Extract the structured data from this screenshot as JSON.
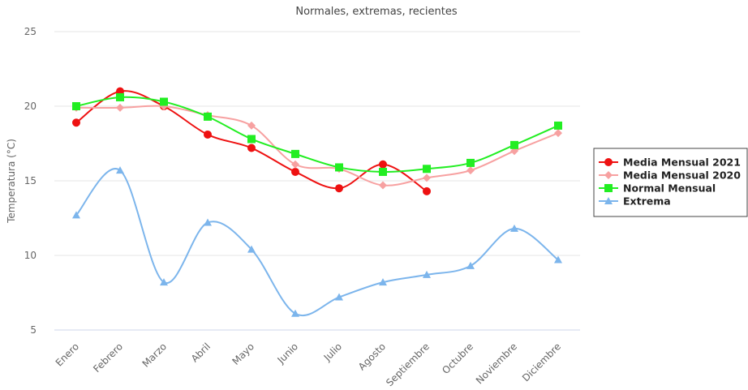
{
  "chart_data": {
    "type": "line",
    "title": "Normales, extremas, recientes",
    "y_label": "Temperatura (°C)",
    "categories": [
      "Enero",
      "Febrero",
      "Marzo",
      "Abril",
      "Mayo",
      "Junio",
      "Julio",
      "Agosto",
      "Septiembre",
      "Octubre",
      "Noviembre",
      "Diciembre"
    ],
    "series": [
      {
        "name": "Media Mensual 2021",
        "color": "#ee1111",
        "marker": "circle",
        "values": [
          18.9,
          21.0,
          20.0,
          18.1,
          17.2,
          15.6,
          14.5,
          16.1,
          14.3,
          null,
          null,
          null
        ]
      },
      {
        "name": "Media Mensual 2020",
        "color": "#f7a1a1",
        "marker": "diamond",
        "values": [
          19.9,
          19.9,
          20.0,
          19.4,
          18.7,
          16.1,
          15.8,
          14.7,
          15.2,
          15.7,
          17.0,
          18.2
        ]
      },
      {
        "name": "Normal Mensual",
        "color": "#22ee22",
        "marker": "square",
        "values": [
          20.0,
          20.6,
          20.3,
          19.3,
          17.8,
          16.8,
          15.9,
          15.6,
          15.8,
          16.2,
          17.4,
          18.7
        ]
      },
      {
        "name": "Extrema",
        "color": "#7cb5ec",
        "marker": "triangle",
        "values": [
          12.7,
          15.7,
          8.2,
          12.2,
          10.4,
          6.1,
          7.2,
          8.2,
          8.7,
          9.3,
          11.8,
          9.7
        ]
      }
    ],
    "ylim": [
      5,
      25
    ],
    "yticks": [
      5,
      10,
      15,
      20,
      25
    ],
    "grid": true,
    "legend": "right"
  }
}
